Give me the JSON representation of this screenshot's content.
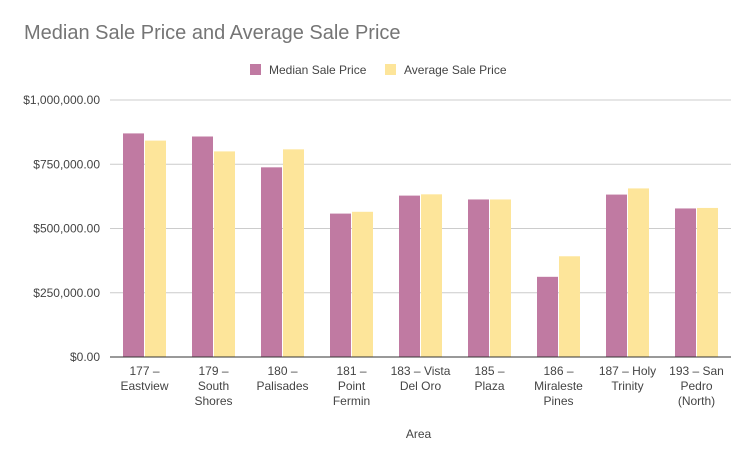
{
  "chart_data": {
    "type": "bar",
    "title": "Median Sale Price and Average Sale Price",
    "xlabel": "Area",
    "ylabel": "",
    "ylim": [
      0,
      1000000
    ],
    "yticks": [
      "$0.00",
      "$250,000.00",
      "$500,000.00",
      "$750,000.00",
      "$1,000,000.00"
    ],
    "ytick_values": [
      0,
      250000,
      500000,
      750000,
      1000000
    ],
    "grid": true,
    "legend_position": "top",
    "categories": [
      [
        "177 –",
        "Eastview"
      ],
      [
        "179 –",
        "South",
        "Shores"
      ],
      [
        "180 –",
        "Palisades"
      ],
      [
        "181 –",
        "Point",
        "Fermin"
      ],
      [
        "183 – Vista",
        "Del Oro"
      ],
      [
        "185 –",
        "Plaza"
      ],
      [
        "186 –",
        "Miraleste",
        "Pines"
      ],
      [
        "187 – Holy",
        "Trinity"
      ],
      [
        "193 – San",
        "Pedro",
        "(North)"
      ]
    ],
    "series": [
      {
        "name": "Median Sale Price",
        "color": "#c07aa2",
        "values": [
          870000,
          858000,
          738000,
          558000,
          628000,
          613000,
          312000,
          632000,
          578000
        ]
      },
      {
        "name": "Average Sale Price",
        "color": "#fde59a",
        "values": [
          842000,
          800000,
          808000,
          565000,
          633000,
          613000,
          392000,
          656000,
          580000
        ]
      }
    ]
  }
}
